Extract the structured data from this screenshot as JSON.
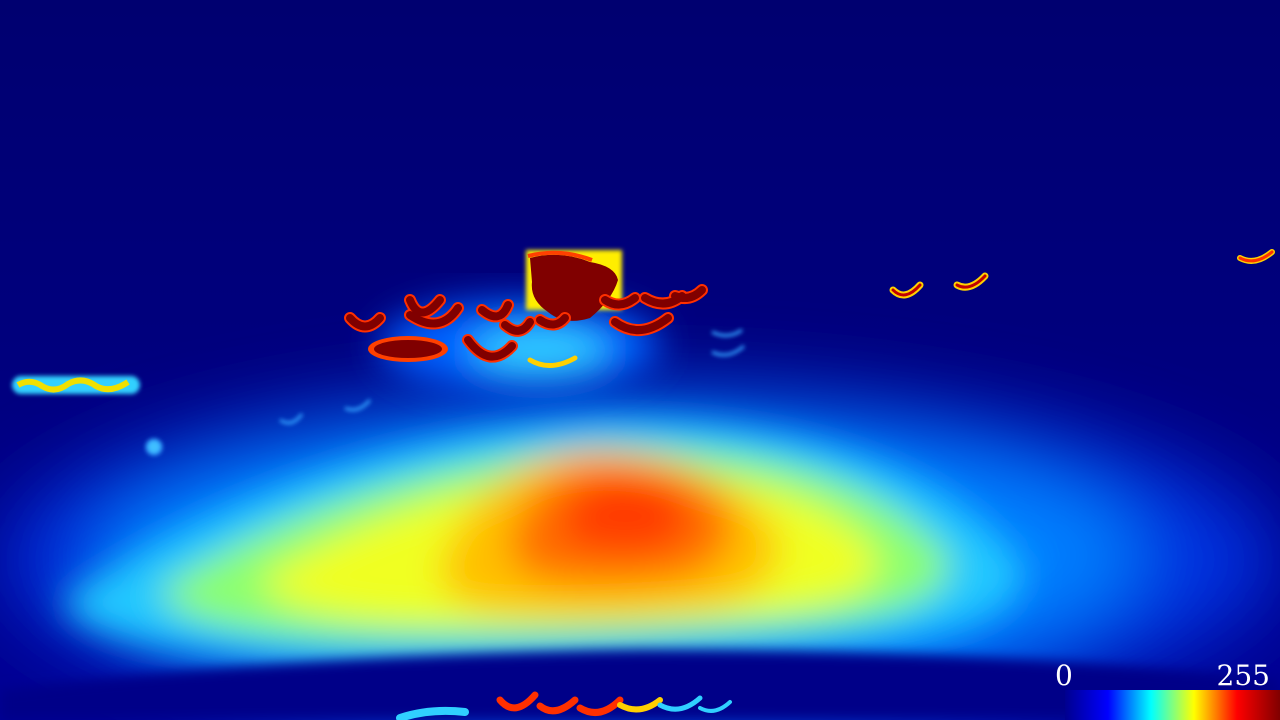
{
  "colormap": {
    "name": "jet",
    "stops": [
      "#00008f",
      "#0000ff",
      "#00ffff",
      "#ffff00",
      "#ff0000",
      "#800000"
    ]
  },
  "legend": {
    "min_label": "0",
    "max_label": "255"
  }
}
